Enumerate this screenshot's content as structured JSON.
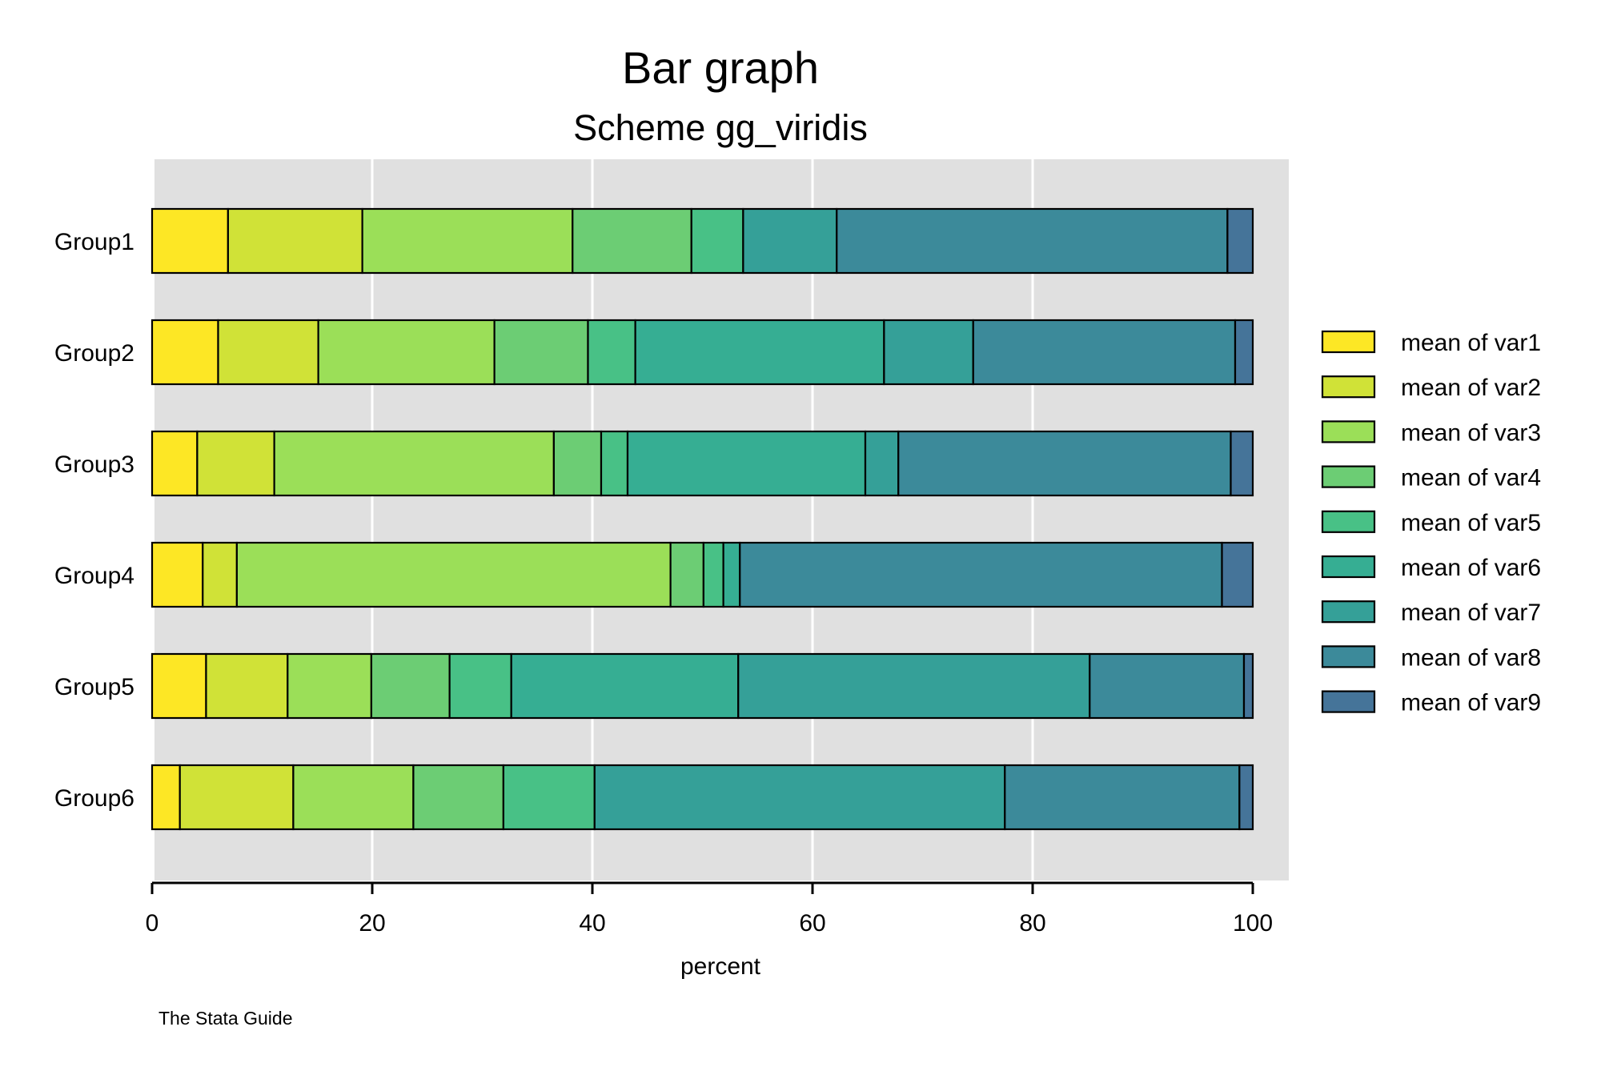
{
  "chart_data": {
    "type": "bar",
    "orientation": "horizontal",
    "stacked": true,
    "title": "Bar graph",
    "subtitle": "Scheme gg_viridis",
    "xlabel": "percent",
    "ylabel": "",
    "xlim": [
      0,
      100
    ],
    "xticks": [
      "0",
      "20",
      "40",
      "60",
      "80",
      "100"
    ],
    "xtick_values": [
      0,
      20,
      40,
      60,
      80,
      100
    ],
    "grid": true,
    "legend_position": "right",
    "note": "The Stata Guide",
    "categories": [
      "Group1",
      "Group2",
      "Group3",
      "Group4",
      "Group5",
      "Group6"
    ],
    "series": [
      {
        "name": "mean of var1",
        "color": "#fde725",
        "values": [
          6.9,
          6.0,
          4.1,
          4.6,
          4.9,
          2.5
        ]
      },
      {
        "name": "mean of var2",
        "color": "#d0e237",
        "values": [
          12.2,
          9.1,
          7.0,
          3.1,
          7.4,
          10.2
        ]
      },
      {
        "name": "mean of var3",
        "color": "#9bdf58",
        "values": [
          19.1,
          16.0,
          25.4,
          39.4,
          7.6,
          10.8
        ]
      },
      {
        "name": "mean of var4",
        "color": "#6ccd74",
        "values": [
          10.8,
          8.5,
          4.3,
          3.0,
          7.1,
          8.1
        ]
      },
      {
        "name": "mean of var5",
        "color": "#48c186",
        "values": [
          4.7,
          4.3,
          2.4,
          1.8,
          5.6,
          8.2
        ]
      },
      {
        "name": "mean of var6",
        "color": "#36ae93",
        "values": [
          0.0,
          22.6,
          21.6,
          1.5,
          20.6,
          0.0
        ]
      },
      {
        "name": "mean of var7",
        "color": "#35a098",
        "values": [
          8.5,
          8.1,
          3.0,
          0.0,
          31.9,
          36.9
        ]
      },
      {
        "name": "mean of var8",
        "color": "#3c8a9a",
        "values": [
          35.5,
          23.8,
          30.2,
          43.8,
          14.0,
          21.1
        ]
      },
      {
        "name": "mean of var9",
        "color": "#457499",
        "values": [
          2.3,
          1.6,
          2.0,
          2.8,
          0.8,
          1.2
        ]
      }
    ]
  }
}
